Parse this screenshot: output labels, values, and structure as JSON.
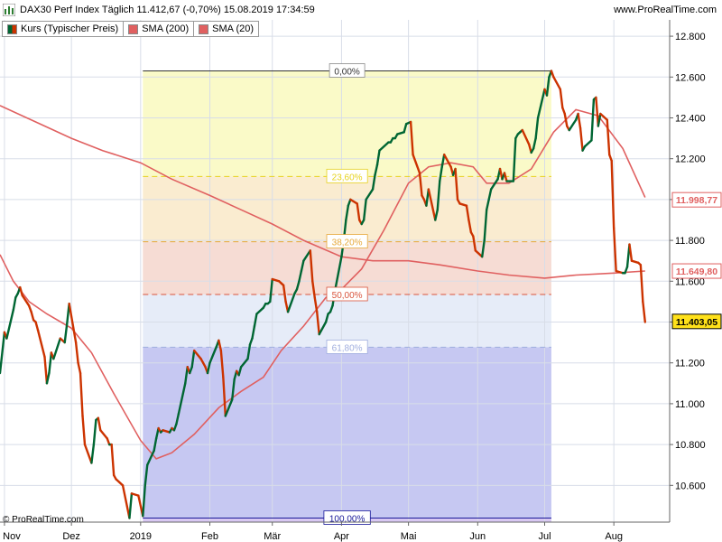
{
  "header": {
    "title": "DAX30 Perf Index Täglich 11.412,67 (-0,70%) 15.08.2019 17:34:59",
    "site": "www.ProRealTime.com"
  },
  "legend": {
    "kurs_label": "Kurs (Typischer Preis)",
    "sma200_label": "SMA (200)",
    "sma20_label": "SMA (20)"
  },
  "copyright": "© ProRealTime.com",
  "colors": {
    "up": "#006633",
    "down": "#cc3300",
    "sma": "#e06060",
    "grid": "#d8dde8",
    "fib_band_0": "#fafac8",
    "fib_band_1": "#faecd0",
    "fib_band_2": "#f6dcd4",
    "fib_band_3": "#e6ecf8",
    "fib_band_4": "#c6c8f2",
    "fib_band_5": "#d8c8f2"
  },
  "chart_data": {
    "type": "line",
    "ylim": [
      10420,
      12880
    ],
    "yticks": [
      10600,
      10800,
      11000,
      11200,
      11400,
      11600,
      11800,
      12000,
      12200,
      12400,
      12600,
      12800
    ],
    "ytick_labels": [
      "10.600",
      "10.800",
      "11.000",
      "11.200",
      "11.400",
      "11.600",
      "11.800",
      "12.000",
      "12.200",
      "12.400",
      "12.600",
      "12.800"
    ],
    "xrange": [
      "2018-10-30",
      "2019-08-26"
    ],
    "xticks": [
      {
        "date": "2018-11-01",
        "label": "Nov"
      },
      {
        "date": "2018-12-01",
        "label": "Dez"
      },
      {
        "date": "2019-01-01",
        "label": "2019"
      },
      {
        "date": "2019-02-01",
        "label": "Feb"
      },
      {
        "date": "2019-03-01",
        "label": "Mär"
      },
      {
        "date": "2019-04-01",
        "label": "Apr"
      },
      {
        "date": "2019-05-01",
        "label": "Mai"
      },
      {
        "date": "2019-06-01",
        "label": "Jun"
      },
      {
        "date": "2019-07-01",
        "label": "Jul"
      },
      {
        "date": "2019-08-01",
        "label": "Aug"
      }
    ],
    "price": [
      [
        "2018-10-30",
        11150
      ],
      [
        "2018-11-01",
        11350
      ],
      [
        "2018-11-02",
        11320
      ],
      [
        "2018-11-05",
        11460
      ],
      [
        "2018-11-06",
        11520
      ],
      [
        "2018-11-07",
        11540
      ],
      [
        "2018-11-08",
        11570
      ],
      [
        "2018-11-09",
        11530
      ],
      [
        "2018-11-12",
        11480
      ],
      [
        "2018-11-13",
        11450
      ],
      [
        "2018-11-14",
        11410
      ],
      [
        "2018-11-15",
        11400
      ],
      [
        "2018-11-16",
        11360
      ],
      [
        "2018-11-19",
        11230
      ],
      [
        "2018-11-20",
        11100
      ],
      [
        "2018-11-21",
        11150
      ],
      [
        "2018-11-22",
        11250
      ],
      [
        "2018-11-23",
        11220
      ],
      [
        "2018-11-26",
        11320
      ],
      [
        "2018-11-27",
        11310
      ],
      [
        "2018-11-28",
        11300
      ],
      [
        "2018-11-29",
        11390
      ],
      [
        "2018-11-30",
        11490
      ],
      [
        "2018-12-03",
        11300
      ],
      [
        "2018-12-04",
        11200
      ],
      [
        "2018-12-05",
        11150
      ],
      [
        "2018-12-06",
        10940
      ],
      [
        "2018-12-07",
        10800
      ],
      [
        "2018-12-10",
        10710
      ],
      [
        "2018-12-11",
        10800
      ],
      [
        "2018-12-12",
        10920
      ],
      [
        "2018-12-13",
        10930
      ],
      [
        "2018-12-14",
        10870
      ],
      [
        "2018-12-17",
        10830
      ],
      [
        "2018-12-18",
        10800
      ],
      [
        "2018-12-19",
        10800
      ],
      [
        "2018-12-20",
        10650
      ],
      [
        "2018-12-21",
        10630
      ],
      [
        "2018-12-24",
        10600
      ],
      [
        "2018-12-27",
        10440
      ],
      [
        "2018-12-28",
        10560
      ],
      [
        "2018-12-31",
        10550
      ],
      [
        "2019-01-02",
        10450
      ],
      [
        "2019-01-03",
        10600
      ],
      [
        "2019-01-04",
        10700
      ],
      [
        "2019-01-07",
        10770
      ],
      [
        "2019-01-08",
        10830
      ],
      [
        "2019-01-09",
        10880
      ],
      [
        "2019-01-10",
        10860
      ],
      [
        "2019-01-11",
        10870
      ],
      [
        "2019-01-14",
        10860
      ],
      [
        "2019-01-15",
        10880
      ],
      [
        "2019-01-16",
        10870
      ],
      [
        "2019-01-17",
        10900
      ],
      [
        "2019-01-18",
        10950
      ],
      [
        "2019-01-21",
        11100
      ],
      [
        "2019-01-22",
        11180
      ],
      [
        "2019-01-23",
        11150
      ],
      [
        "2019-01-24",
        11180
      ],
      [
        "2019-01-25",
        11260
      ],
      [
        "2019-01-28",
        11220
      ],
      [
        "2019-01-29",
        11200
      ],
      [
        "2019-01-30",
        11180
      ],
      [
        "2019-01-31",
        11150
      ],
      [
        "2019-02-01",
        11200
      ],
      [
        "2019-02-04",
        11280
      ],
      [
        "2019-02-05",
        11310
      ],
      [
        "2019-02-06",
        11260
      ],
      [
        "2019-02-07",
        11130
      ],
      [
        "2019-02-08",
        10940
      ],
      [
        "2019-02-11",
        11020
      ],
      [
        "2019-02-12",
        11120
      ],
      [
        "2019-02-13",
        11160
      ],
      [
        "2019-02-14",
        11140
      ],
      [
        "2019-02-15",
        11180
      ],
      [
        "2019-02-18",
        11220
      ],
      [
        "2019-02-19",
        11290
      ],
      [
        "2019-02-20",
        11320
      ],
      [
        "2019-02-21",
        11380
      ],
      [
        "2019-02-22",
        11440
      ],
      [
        "2019-02-25",
        11470
      ],
      [
        "2019-02-26",
        11490
      ],
      [
        "2019-02-27",
        11490
      ],
      [
        "2019-02-28",
        11500
      ],
      [
        "2019-03-01",
        11610
      ],
      [
        "2019-03-04",
        11600
      ],
      [
        "2019-03-05",
        11590
      ],
      [
        "2019-03-06",
        11580
      ],
      [
        "2019-03-07",
        11500
      ],
      [
        "2019-03-08",
        11450
      ],
      [
        "2019-03-11",
        11540
      ],
      [
        "2019-03-12",
        11560
      ],
      [
        "2019-03-13",
        11600
      ],
      [
        "2019-03-14",
        11650
      ],
      [
        "2019-03-15",
        11700
      ],
      [
        "2019-03-18",
        11750
      ],
      [
        "2019-03-19",
        11600
      ],
      [
        "2019-03-20",
        11520
      ],
      [
        "2019-03-21",
        11450
      ],
      [
        "2019-03-22",
        11340
      ],
      [
        "2019-03-25",
        11400
      ],
      [
        "2019-03-26",
        11440
      ],
      [
        "2019-03-27",
        11450
      ],
      [
        "2019-03-28",
        11480
      ],
      [
        "2019-03-29",
        11550
      ],
      [
        "2019-04-01",
        11720
      ],
      [
        "2019-04-02",
        11800
      ],
      [
        "2019-04-03",
        11900
      ],
      [
        "2019-04-04",
        11970
      ],
      [
        "2019-04-05",
        12000
      ],
      [
        "2019-04-08",
        11980
      ],
      [
        "2019-04-09",
        11900
      ],
      [
        "2019-04-10",
        11880
      ],
      [
        "2019-04-11",
        11900
      ],
      [
        "2019-04-12",
        12000
      ],
      [
        "2019-04-15",
        12050
      ],
      [
        "2019-04-16",
        12120
      ],
      [
        "2019-04-17",
        12170
      ],
      [
        "2019-04-18",
        12240
      ],
      [
        "2019-04-22",
        12280
      ],
      [
        "2019-04-23",
        12280
      ],
      [
        "2019-04-24",
        12300
      ],
      [
        "2019-04-25",
        12300
      ],
      [
        "2019-04-26",
        12320
      ],
      [
        "2019-04-29",
        12330
      ],
      [
        "2019-04-30",
        12370
      ],
      [
        "2019-05-02",
        12380
      ],
      [
        "2019-05-03",
        12220
      ],
      [
        "2019-05-06",
        12130
      ],
      [
        "2019-05-07",
        12020
      ],
      [
        "2019-05-08",
        12000
      ],
      [
        "2019-05-09",
        11970
      ],
      [
        "2019-05-10",
        12050
      ],
      [
        "2019-05-13",
        11900
      ],
      [
        "2019-05-14",
        11950
      ],
      [
        "2019-05-15",
        12090
      ],
      [
        "2019-05-16",
        12160
      ],
      [
        "2019-05-17",
        12220
      ],
      [
        "2019-05-20",
        12160
      ],
      [
        "2019-05-21",
        12120
      ],
      [
        "2019-05-22",
        12150
      ],
      [
        "2019-05-23",
        12000
      ],
      [
        "2019-05-24",
        11980
      ],
      [
        "2019-05-27",
        11970
      ],
      [
        "2019-05-28",
        11900
      ],
      [
        "2019-05-29",
        11840
      ],
      [
        "2019-05-30",
        11820
      ],
      [
        "2019-05-31",
        11750
      ],
      [
        "2019-06-03",
        11720
      ],
      [
        "2019-06-04",
        11800
      ],
      [
        "2019-06-05",
        11950
      ],
      [
        "2019-06-06",
        12000
      ],
      [
        "2019-06-07",
        12050
      ],
      [
        "2019-06-10",
        12100
      ],
      [
        "2019-06-11",
        12150
      ],
      [
        "2019-06-12",
        12100
      ],
      [
        "2019-06-13",
        12130
      ],
      [
        "2019-06-14",
        12090
      ],
      [
        "2019-06-17",
        12090
      ],
      [
        "2019-06-18",
        12300
      ],
      [
        "2019-06-19",
        12320
      ],
      [
        "2019-06-20",
        12330
      ],
      [
        "2019-06-21",
        12340
      ],
      [
        "2019-06-24",
        12270
      ],
      [
        "2019-06-25",
        12230
      ],
      [
        "2019-06-26",
        12250
      ],
      [
        "2019-06-27",
        12300
      ],
      [
        "2019-06-28",
        12400
      ],
      [
        "2019-07-01",
        12540
      ],
      [
        "2019-07-02",
        12510
      ],
      [
        "2019-07-03",
        12600
      ],
      [
        "2019-07-04",
        12630
      ],
      [
        "2019-07-05",
        12600
      ],
      [
        "2019-07-08",
        12540
      ],
      [
        "2019-07-09",
        12450
      ],
      [
        "2019-07-10",
        12420
      ],
      [
        "2019-07-11",
        12360
      ],
      [
        "2019-07-12",
        12340
      ],
      [
        "2019-07-15",
        12390
      ],
      [
        "2019-07-16",
        12420
      ],
      [
        "2019-07-17",
        12350
      ],
      [
        "2019-07-18",
        12240
      ],
      [
        "2019-07-19",
        12260
      ],
      [
        "2019-07-22",
        12290
      ],
      [
        "2019-07-23",
        12490
      ],
      [
        "2019-07-24",
        12500
      ],
      [
        "2019-07-25",
        12360
      ],
      [
        "2019-07-26",
        12420
      ],
      [
        "2019-07-29",
        12390
      ],
      [
        "2019-07-30",
        12220
      ],
      [
        "2019-07-31",
        12190
      ],
      [
        "2019-08-01",
        11860
      ],
      [
        "2019-08-02",
        11650
      ],
      [
        "2019-08-05",
        11640
      ],
      [
        "2019-08-06",
        11640
      ],
      [
        "2019-08-07",
        11670
      ],
      [
        "2019-08-08",
        11780
      ],
      [
        "2019-08-09",
        11700
      ],
      [
        "2019-08-12",
        11690
      ],
      [
        "2019-08-13",
        11680
      ],
      [
        "2019-08-14",
        11500
      ],
      [
        "2019-08-15",
        11400
      ]
    ],
    "sma200": [
      [
        "2018-10-30",
        12460
      ],
      [
        "2018-11-15",
        12380
      ],
      [
        "2018-12-01",
        12300
      ],
      [
        "2018-12-15",
        12240
      ],
      [
        "2019-01-01",
        12180
      ],
      [
        "2019-01-15",
        12100
      ],
      [
        "2019-02-01",
        12020
      ],
      [
        "2019-02-15",
        11950
      ],
      [
        "2019-03-01",
        11880
      ],
      [
        "2019-03-15",
        11800
      ],
      [
        "2019-04-01",
        11720
      ],
      [
        "2019-04-15",
        11700
      ],
      [
        "2019-05-01",
        11700
      ],
      [
        "2019-05-15",
        11680
      ],
      [
        "2019-06-01",
        11650
      ],
      [
        "2019-06-15",
        11630
      ],
      [
        "2019-07-01",
        11615
      ],
      [
        "2019-07-15",
        11630
      ],
      [
        "2019-08-01",
        11640
      ],
      [
        "2019-08-15",
        11650
      ]
    ],
    "sma20": [
      [
        "2018-10-30",
        11730
      ],
      [
        "2018-11-05",
        11600
      ],
      [
        "2018-11-12",
        11500
      ],
      [
        "2018-11-20",
        11440
      ],
      [
        "2018-12-01",
        11370
      ],
      [
        "2018-12-10",
        11250
      ],
      [
        "2018-12-20",
        11050
      ],
      [
        "2019-01-01",
        10820
      ],
      [
        "2019-01-08",
        10730
      ],
      [
        "2019-01-15",
        10760
      ],
      [
        "2019-01-25",
        10850
      ],
      [
        "2019-02-05",
        10980
      ],
      [
        "2019-02-15",
        11060
      ],
      [
        "2019-02-25",
        11130
      ],
      [
        "2019-03-05",
        11260
      ],
      [
        "2019-03-15",
        11380
      ],
      [
        "2019-03-25",
        11520
      ],
      [
        "2019-04-01",
        11560
      ],
      [
        "2019-04-10",
        11660
      ],
      [
        "2019-04-20",
        11850
      ],
      [
        "2019-05-01",
        12080
      ],
      [
        "2019-05-10",
        12160
      ],
      [
        "2019-05-20",
        12180
      ],
      [
        "2019-05-30",
        12160
      ],
      [
        "2019-06-05",
        12080
      ],
      [
        "2019-06-15",
        12080
      ],
      [
        "2019-06-25",
        12150
      ],
      [
        "2019-07-05",
        12330
      ],
      [
        "2019-07-15",
        12440
      ],
      [
        "2019-07-25",
        12410
      ],
      [
        "2019-08-05",
        12250
      ],
      [
        "2019-08-15",
        12010
      ]
    ],
    "fibonacci": {
      "start_date": "2019-01-02",
      "end_date": "2019-07-04",
      "high": 12630,
      "low": 10440,
      "levels": [
        {
          "ratio": 0.0,
          "label": "0,00%",
          "color": "#333333"
        },
        {
          "ratio": 0.236,
          "label": "23,60%",
          "color": "#e6d21c"
        },
        {
          "ratio": 0.382,
          "label": "38,20%",
          "color": "#e6a83a"
        },
        {
          "ratio": 0.5,
          "label": "50,00%",
          "color": "#d9543c"
        },
        {
          "ratio": 0.618,
          "label": "61,80%",
          "color": "#a0aede"
        },
        {
          "ratio": 1.0,
          "label": "100,00%",
          "color": "#1a1a99"
        }
      ]
    },
    "markers": [
      {
        "label": "11.998,77",
        "color": "#e06060",
        "value": 11998.77,
        "fill": "#ffffff"
      },
      {
        "label": "11.649,80",
        "color": "#e06060",
        "value": 11649.8,
        "fill": "#ffffff"
      },
      {
        "label": "11.403,05",
        "color": "#000000",
        "value": 11403.05,
        "fill": "#ffe11a"
      }
    ]
  }
}
